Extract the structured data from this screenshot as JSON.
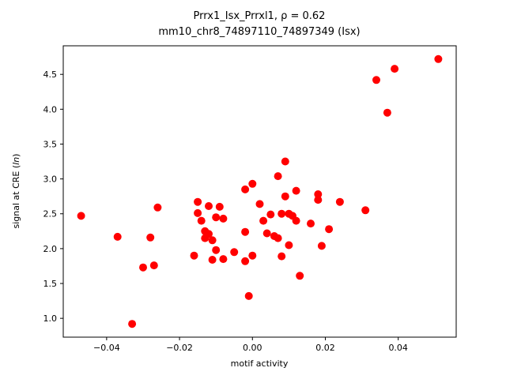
{
  "chart_data": {
    "type": "scatter",
    "title_line1": "Prrx1_Isx_Prrxl1, ρ = 0.62",
    "title_line2": "mm10_chr8_74897110_74897349 (Isx)",
    "xlabel": "motif activity",
    "ylabel_prefix": "signal at CRE (",
    "ylabel_italic": "ln",
    "ylabel_suffix": ")",
    "marker_color": "#ff0000",
    "axis_color": "#000000",
    "background_color": "#ffffff",
    "xlim": [
      -0.0519,
      0.0559
    ],
    "ylim": [
      0.73,
      4.91
    ],
    "xticks": [
      {
        "v": -0.04,
        "label": "−0.04"
      },
      {
        "v": -0.02,
        "label": "−0.02"
      },
      {
        "v": 0.0,
        "label": "0.00"
      },
      {
        "v": 0.02,
        "label": "0.02"
      },
      {
        "v": 0.04,
        "label": "0.04"
      }
    ],
    "yticks": [
      {
        "v": 1.0,
        "label": "1.0"
      },
      {
        "v": 1.5,
        "label": "1.5"
      },
      {
        "v": 2.0,
        "label": "2.0"
      },
      {
        "v": 2.5,
        "label": "2.5"
      },
      {
        "v": 3.0,
        "label": "3.0"
      },
      {
        "v": 3.5,
        "label": "3.5"
      },
      {
        "v": 4.0,
        "label": "4.0"
      },
      {
        "v": 4.5,
        "label": "4.5"
      }
    ],
    "points": [
      [
        -0.047,
        2.47
      ],
      [
        -0.037,
        2.17
      ],
      [
        -0.033,
        0.92
      ],
      [
        -0.03,
        1.73
      ],
      [
        -0.028,
        2.16
      ],
      [
        -0.027,
        1.76
      ],
      [
        -0.026,
        2.59
      ],
      [
        -0.016,
        1.9
      ],
      [
        -0.015,
        2.67
      ],
      [
        -0.015,
        2.51
      ],
      [
        -0.014,
        2.4
      ],
      [
        -0.013,
        2.25
      ],
      [
        -0.013,
        2.15
      ],
      [
        -0.012,
        2.61
      ],
      [
        -0.012,
        2.21
      ],
      [
        -0.011,
        2.12
      ],
      [
        -0.011,
        1.84
      ],
      [
        -0.01,
        2.45
      ],
      [
        -0.01,
        1.98
      ],
      [
        -0.009,
        2.6
      ],
      [
        -0.008,
        2.43
      ],
      [
        -0.008,
        1.85
      ],
      [
        -0.005,
        1.95
      ],
      [
        -0.002,
        2.85
      ],
      [
        -0.002,
        2.24
      ],
      [
        -0.002,
        1.82
      ],
      [
        -0.001,
        1.32
      ],
      [
        0.0,
        2.93
      ],
      [
        0.0,
        1.9
      ],
      [
        0.002,
        2.64
      ],
      [
        0.003,
        2.4
      ],
      [
        0.004,
        2.22
      ],
      [
        0.005,
        2.49
      ],
      [
        0.006,
        2.18
      ],
      [
        0.007,
        3.04
      ],
      [
        0.007,
        2.15
      ],
      [
        0.008,
        2.5
      ],
      [
        0.008,
        1.89
      ],
      [
        0.009,
        3.25
      ],
      [
        0.009,
        2.75
      ],
      [
        0.01,
        2.5
      ],
      [
        0.01,
        2.05
      ],
      [
        0.011,
        2.47
      ],
      [
        0.012,
        2.83
      ],
      [
        0.012,
        2.4
      ],
      [
        0.013,
        1.61
      ],
      [
        0.016,
        2.36
      ],
      [
        0.018,
        2.78
      ],
      [
        0.018,
        2.7
      ],
      [
        0.019,
        2.04
      ],
      [
        0.021,
        2.28
      ],
      [
        0.024,
        2.67
      ],
      [
        0.031,
        2.55
      ],
      [
        0.034,
        4.42
      ],
      [
        0.037,
        3.95
      ],
      [
        0.039,
        4.58
      ],
      [
        0.051,
        4.72
      ]
    ]
  }
}
